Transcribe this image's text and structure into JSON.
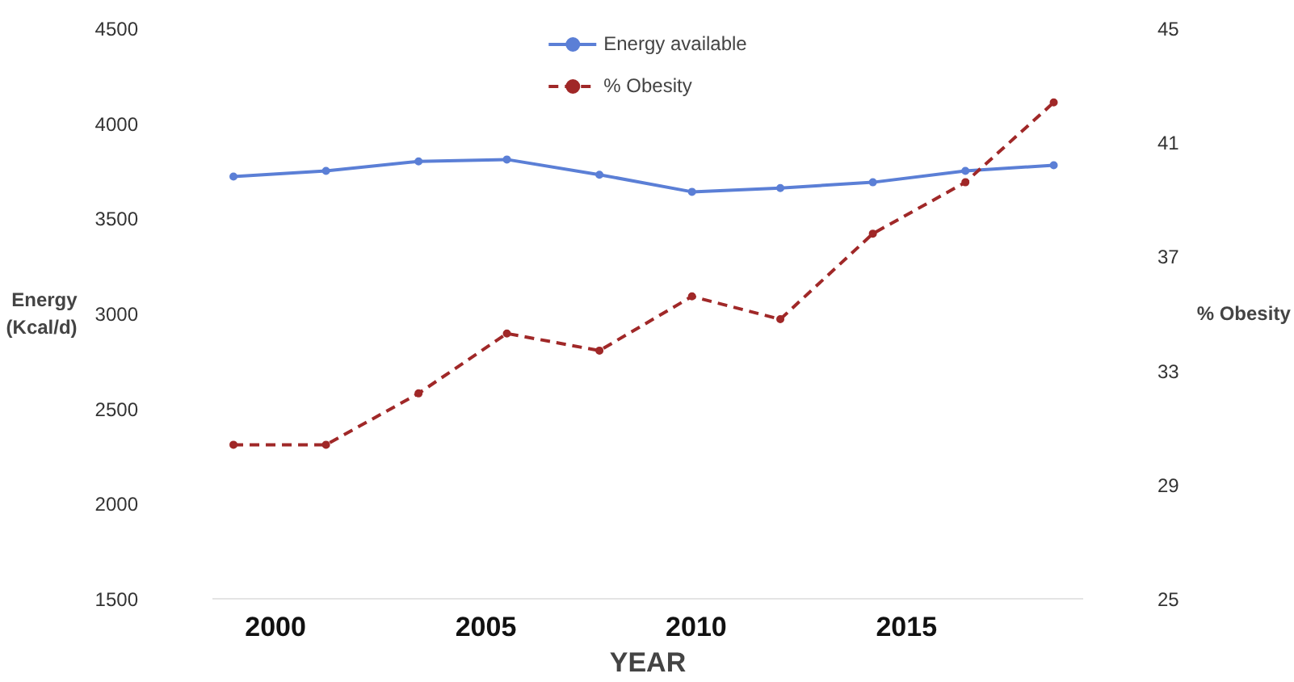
{
  "chart_data": {
    "type": "line",
    "xlabel": "YEAR",
    "ylabel": "Energy\n(Kcal/d)",
    "y2label": "% Obesity",
    "x": [
      1999,
      2001.2,
      2003.4,
      2005.5,
      2007.7,
      2009.9,
      2012,
      2014.2,
      2016.4,
      2018.5
    ],
    "series": [
      {
        "name": "Energy available",
        "color": "#5b7fd6",
        "line_style": "solid",
        "values": [
          3720,
          3750,
          3800,
          3810,
          3730,
          3640,
          3660,
          3690,
          3750,
          3780
        ]
      },
      {
        "name": "% Obesity",
        "color": "#a02828",
        "line_style": "dashed",
        "axis": "y2",
        "values": [
          30.4,
          30.4,
          32.2,
          34.3,
          33.7,
          35.6,
          34.8,
          37.8,
          39.6,
          42.4
        ]
      }
    ],
    "xlim": [
      1998.5,
      2019.2
    ],
    "xticks": [
      2000,
      2005,
      2010,
      2015
    ],
    "ylim": [
      1500,
      4500
    ],
    "yticks": [
      1500,
      2000,
      2500,
      3000,
      3500,
      4000,
      4500
    ],
    "y2lim": [
      25,
      45
    ],
    "y2ticks": [
      25,
      29,
      33,
      37,
      41,
      45
    ],
    "grid": false,
    "legend": "top",
    "marker": "circle"
  }
}
